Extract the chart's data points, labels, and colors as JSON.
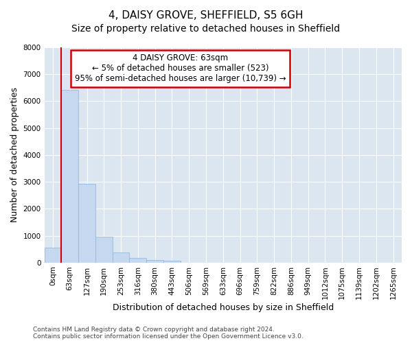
{
  "title": "4, DAISY GROVE, SHEFFIELD, S5 6GH",
  "subtitle": "Size of property relative to detached houses in Sheffield",
  "xlabel": "Distribution of detached houses by size in Sheffield",
  "ylabel": "Number of detached properties",
  "footnote1": "Contains HM Land Registry data © Crown copyright and database right 2024.",
  "footnote2": "Contains public sector information licensed under the Open Government Licence v3.0.",
  "bar_labels": [
    "0sqm",
    "63sqm",
    "127sqm",
    "190sqm",
    "253sqm",
    "316sqm",
    "380sqm",
    "443sqm",
    "506sqm",
    "569sqm",
    "633sqm",
    "696sqm",
    "759sqm",
    "822sqm",
    "886sqm",
    "949sqm",
    "1012sqm",
    "1075sqm",
    "1139sqm",
    "1202sqm",
    "1265sqm"
  ],
  "bar_values": [
    560,
    6430,
    2920,
    970,
    370,
    165,
    110,
    75,
    0,
    0,
    0,
    0,
    0,
    0,
    0,
    0,
    0,
    0,
    0,
    0,
    0
  ],
  "bar_color": "#c5d8ef",
  "bar_edge_color": "#8ab4d8",
  "background_color": "#dce6f1",
  "grid_color": "#ffffff",
  "property_line_color": "#cc0000",
  "property_line_label": "4 DAISY GROVE: 63sqm",
  "annotation_line1": "← 5% of detached houses are smaller (523)",
  "annotation_line2": "95% of semi-detached houses are larger (10,739) →",
  "annotation_box_color": "#ffffff",
  "annotation_border_color": "#cc0000",
  "ylim": [
    0,
    8000
  ],
  "yticks": [
    0,
    1000,
    2000,
    3000,
    4000,
    5000,
    6000,
    7000,
    8000
  ],
  "title_fontsize": 11,
  "subtitle_fontsize": 10,
  "axis_label_fontsize": 9,
  "tick_fontsize": 7.5,
  "annotation_fontsize": 8.5,
  "footnote_fontsize": 6.5
}
